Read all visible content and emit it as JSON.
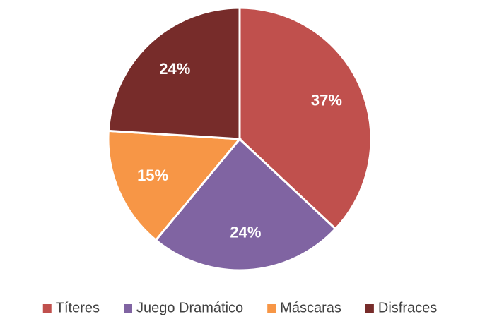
{
  "chart_data": {
    "type": "pie",
    "categories": [
      "Títeres",
      "Juego Dramático",
      "Máscaras",
      "Disfraces"
    ],
    "values": [
      37,
      24,
      15,
      24
    ],
    "value_labels": [
      "37%",
      "24%",
      "15%",
      "24%"
    ],
    "colors": [
      "#c0504d",
      "#8064a2",
      "#f79646",
      "#772c2a"
    ],
    "legend": "bottom"
  }
}
